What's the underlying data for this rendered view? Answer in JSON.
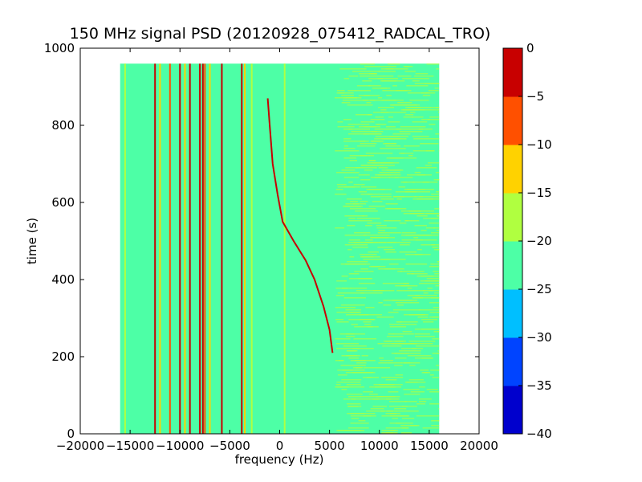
{
  "chart_data": {
    "type": "heatmap",
    "title": "150 MHz signal PSD (20120928_075412_RADCAL_TRO)",
    "xlabel": "frequency (Hz)",
    "ylabel": "time (s)",
    "xlim": [
      -20000,
      20000
    ],
    "ylim": [
      0,
      1000
    ],
    "x_ticks": [
      -20000,
      -15000,
      -10000,
      -5000,
      0,
      5000,
      10000,
      15000,
      20000
    ],
    "x_tick_labels": [
      "−20000",
      "−15000",
      "−10000",
      "−5000",
      "0",
      "5000",
      "10000",
      "15000",
      "20000"
    ],
    "y_ticks": [
      0,
      200,
      400,
      600,
      800,
      1000
    ],
    "y_tick_labels": [
      "0",
      "200",
      "400",
      "600",
      "800",
      "1000"
    ],
    "data_extent": {
      "freq_min": -16000,
      "freq_max": 16000,
      "time_min": 0,
      "time_max": 960
    },
    "background_level": -22.5,
    "colorbar": {
      "levels": [
        -40,
        -35,
        -30,
        -25,
        -20,
        -15,
        -10,
        -5,
        0
      ],
      "tick_labels": [
        "−40",
        "−35",
        "−30",
        "−25",
        "−20",
        "−15",
        "−10",
        "−5",
        "0"
      ],
      "colors": [
        "#0000cd",
        "#0044ff",
        "#00bfff",
        "#4dffa6",
        "#b0ff40",
        "#ffd200",
        "#ff5000",
        "#c80000"
      ]
    },
    "signal_lines": [
      {
        "freq": -15500,
        "level": -17.5
      },
      {
        "freq": -12500,
        "level": -2.5
      },
      {
        "freq": -12000,
        "level": -12.5
      },
      {
        "freq": -11000,
        "level": -7.5
      },
      {
        "freq": -10000,
        "level": -2.5
      },
      {
        "freq": -9500,
        "level": -12.5
      },
      {
        "freq": -9000,
        "level": -2.5
      },
      {
        "freq": -8000,
        "level": -2.5
      },
      {
        "freq": -7700,
        "level": -2.5
      },
      {
        "freq": -7500,
        "level": -7.5
      },
      {
        "freq": -7000,
        "level": -12.5
      },
      {
        "freq": -5800,
        "level": -2.5
      },
      {
        "freq": -3800,
        "level": -2.5
      },
      {
        "freq": -3500,
        "level": -12.5
      },
      {
        "freq": -2800,
        "level": -17.5
      },
      {
        "freq": 500,
        "level": -17.5
      }
    ],
    "drifting_signal": {
      "level": -2.5,
      "points": [
        {
          "time": 870,
          "freq": -1200
        },
        {
          "time": 800,
          "freq": -1000
        },
        {
          "time": 700,
          "freq": -700
        },
        {
          "time": 620,
          "freq": -200
        },
        {
          "time": 550,
          "freq": 300
        },
        {
          "time": 500,
          "freq": 1400
        },
        {
          "time": 450,
          "freq": 2600
        },
        {
          "time": 400,
          "freq": 3500
        },
        {
          "time": 330,
          "freq": 4400
        },
        {
          "time": 270,
          "freq": 5000
        },
        {
          "time": 210,
          "freq": 5300
        }
      ]
    },
    "noise_band": {
      "freq_min": 5500,
      "freq_max": 16000,
      "level": -17.5
    }
  }
}
